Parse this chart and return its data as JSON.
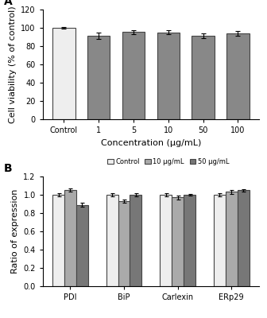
{
  "panel_A": {
    "categories": [
      "Control",
      "1",
      "5",
      "10",
      "50",
      "100"
    ],
    "values": [
      100,
      91,
      95.5,
      95,
      91.5,
      94
    ],
    "errors": [
      1.2,
      3.5,
      2.2,
      2.2,
      2.5,
      2.5
    ],
    "bar_colors": [
      "#eeeeee",
      "#888888",
      "#888888",
      "#888888",
      "#888888",
      "#888888"
    ],
    "edge_colors": [
      "#444444",
      "#444444",
      "#444444",
      "#444444",
      "#444444",
      "#444444"
    ],
    "ylabel": "Cell viability (% of control)",
    "xlabel": "Concentration (μg/mL)",
    "ylim": [
      0,
      120
    ],
    "yticks": [
      0,
      20,
      40,
      60,
      80,
      100,
      120
    ],
    "panel_label": "A"
  },
  "panel_B": {
    "categories": [
      "PDI",
      "BiP",
      "Carlexin",
      "ERp29"
    ],
    "series": {
      "Control": [
        1.0,
        1.0,
        1.0,
        1.0
      ],
      "10 μg/mL": [
        1.05,
        0.93,
        0.97,
        1.03
      ],
      "50 μg/mL": [
        0.89,
        1.0,
        1.0,
        1.05
      ]
    },
    "errors": {
      "Control": [
        0.02,
        0.015,
        0.015,
        0.015
      ],
      "10 μg/mL": [
        0.015,
        0.02,
        0.02,
        0.02
      ],
      "50 μg/mL": [
        0.02,
        0.015,
        0.012,
        0.012
      ]
    },
    "bar_colors": {
      "Control": "#eeeeee",
      "10 μg/mL": "#aaaaaa",
      "50 μg/mL": "#777777"
    },
    "edge_colors": "#444444",
    "ylabel": "Ratio of expression",
    "ylim": [
      0,
      1.2
    ],
    "yticks": [
      0,
      0.2,
      0.4,
      0.6,
      0.8,
      1.0,
      1.2
    ],
    "panel_label": "B",
    "legend_labels": [
      "Control",
      "10 μg/mL",
      "50 μg/mL"
    ]
  },
  "background_color": "#ffffff",
  "tick_fontsize": 7,
  "label_fontsize": 8,
  "panel_label_fontsize": 10
}
